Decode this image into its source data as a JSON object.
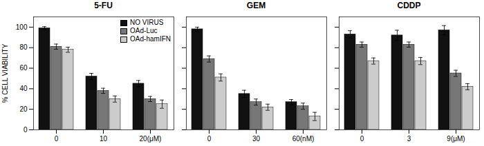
{
  "chart_data": [
    {
      "type": "bar",
      "title": "5-FU",
      "categories": [
        "0",
        "10",
        "20(μM)"
      ],
      "series": [
        {
          "name": "NO VIRUS",
          "color": "#111111",
          "values": [
            99,
            52,
            45
          ],
          "errors": [
            1.5,
            3.0,
            3.0
          ]
        },
        {
          "name": "OAd-Luc",
          "color": "#777777",
          "values": [
            81,
            38,
            30
          ],
          "errors": [
            2.5,
            2.5,
            2.5
          ]
        },
        {
          "name": "OAd-hamIFN",
          "color": "#cccccc",
          "values": [
            78,
            30,
            25
          ],
          "errors": [
            2.5,
            3.0,
            4.0
          ]
        }
      ],
      "ylim": [
        0,
        110
      ],
      "yticks": [
        0,
        20,
        40,
        60,
        80,
        100
      ],
      "ylabel": "% CELL VIABILITY",
      "legend": "upper right"
    },
    {
      "type": "bar",
      "title": "GEM",
      "categories": [
        "0",
        "30",
        "60(nM)"
      ],
      "series": [
        {
          "name": "NO VIRUS",
          "color": "#111111",
          "values": [
            98,
            35,
            27
          ],
          "errors": [
            2.0,
            3.5,
            2.5
          ]
        },
        {
          "name": "OAd-Luc",
          "color": "#777777",
          "values": [
            69,
            27,
            23
          ],
          "errors": [
            3.0,
            3.0,
            3.0
          ]
        },
        {
          "name": "OAd-hamIFN",
          "color": "#cccccc",
          "values": [
            51,
            22,
            13
          ],
          "errors": [
            3.5,
            3.0,
            4.0
          ]
        }
      ],
      "ylim": [
        0,
        110
      ],
      "yticks": [
        0,
        20,
        40,
        60,
        80,
        100
      ],
      "tick_labels": "x"
    },
    {
      "type": "bar",
      "title": "CDDP",
      "categories": [
        "0",
        "3",
        "9(μM)"
      ],
      "series": [
        {
          "name": "NO VIRUS",
          "color": "#111111",
          "values": [
            93,
            92,
            97
          ],
          "errors": [
            3.5,
            5.0,
            4.5
          ]
        },
        {
          "name": "OAd-Luc",
          "color": "#777777",
          "values": [
            83,
            83,
            55
          ],
          "errors": [
            2.5,
            2.5,
            3.0
          ]
        },
        {
          "name": "OAd-hamIFN",
          "color": "#cccccc",
          "values": [
            67,
            67,
            42
          ],
          "errors": [
            3.0,
            3.5,
            3.0
          ]
        }
      ],
      "ylim": [
        0,
        110
      ],
      "yticks": [
        0,
        20,
        40,
        60,
        80,
        100
      ],
      "tick_labels": "x"
    }
  ]
}
